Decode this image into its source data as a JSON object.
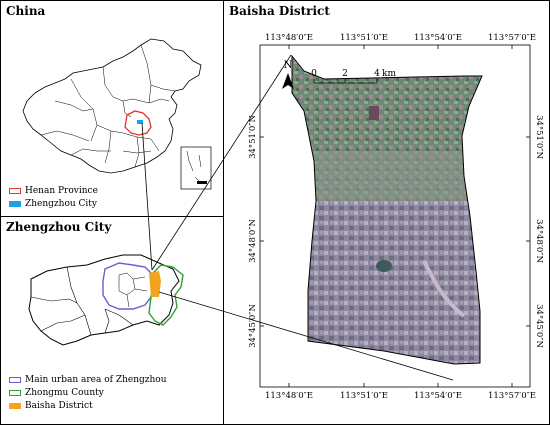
{
  "panels": {
    "china": {
      "title": "China",
      "legend": [
        {
          "label": "Henan Province",
          "style": "outline",
          "color": "#e8322a"
        },
        {
          "label": "Zhengzhou City",
          "style": "fill",
          "color": "#1ea0e6"
        }
      ]
    },
    "zhengzhou": {
      "title": "Zhengzhou City",
      "legend": [
        {
          "label": "Main urban area of Zhengzhou",
          "style": "outline",
          "color": "#6a5fd0"
        },
        {
          "label": "Zhongmu County",
          "style": "outline",
          "color": "#2ea02e"
        },
        {
          "label": "Baisha District",
          "style": "fill",
          "color": "#f4a41c"
        }
      ]
    },
    "baisha": {
      "title": "Baisha District",
      "top_lon": [
        "113°48′0″E",
        "113°51′0″E",
        "113°54′0″E",
        "113°57′0″E"
      ],
      "bottom_lon": [
        "113°48′0″E",
        "113°51′0″E",
        "113°54′0″E",
        "113°57′0″E"
      ],
      "left_lat": [
        "34°51′0″N",
        "34°48′0″N",
        "34°45′0″N"
      ],
      "right_lat": [
        "34°51′0″N",
        "34°48′0″N",
        "34°45′0″N"
      ],
      "north": "N",
      "scale": {
        "ticks": [
          "0",
          "2",
          "4"
        ],
        "unit": "km"
      }
    }
  },
  "colors": {
    "henan": "#e8322a",
    "zhengzhou": "#1ea0e6",
    "urban": "#6a5fd0",
    "zhongmu": "#2ea02e",
    "baisha": "#f4a41c"
  }
}
